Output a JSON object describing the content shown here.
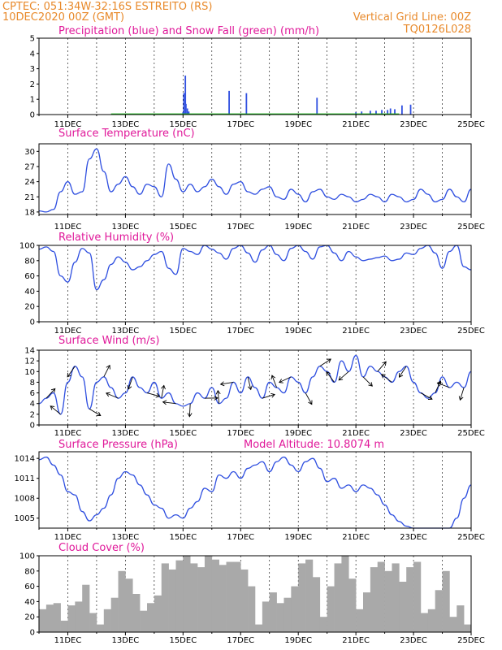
{
  "header": {
    "station": "CPTEC:   051:34W-32:16S   ESTREITO (RS)",
    "date": "10DEC2020 00Z (GMT)",
    "grid_note": "Vertical Grid Line: 00Z",
    "code": "TQ0126L028"
  },
  "colors": {
    "series": "#3050e0",
    "snow": "#20c020",
    "cloud": "#a9a9a9",
    "title": "#e0199a",
    "header": "#e8892a"
  },
  "x_axis": {
    "start": "2020-12-10T00Z",
    "end": "2020-12-25T00Z",
    "ticks": [
      "11DEC",
      "13DEC",
      "15DEC",
      "17DEC",
      "19DEC",
      "21DEC",
      "23DEC",
      "25DEC"
    ]
  },
  "chart_data": [
    {
      "type": "bar",
      "title": "Precipitation (blue) and Snow Fall (green) (mm/h)",
      "ylim": [
        0,
        5
      ],
      "yticks": [
        0,
        1,
        2,
        3,
        4,
        5
      ],
      "series": [
        {
          "name": "Precipitation",
          "points": [
            [
              4.3,
              0.05
            ],
            [
              4.9,
              0.05
            ],
            [
              5.0,
              0.15
            ],
            [
              5.03,
              1.4
            ],
            [
              5.08,
              2.55
            ],
            [
              5.1,
              0.7
            ],
            [
              5.15,
              0.4
            ],
            [
              5.2,
              0.2
            ],
            [
              6.6,
              1.55
            ],
            [
              7.2,
              1.4
            ],
            [
              9.65,
              1.1
            ],
            [
              11.0,
              0.15
            ],
            [
              11.2,
              0.2
            ],
            [
              11.5,
              0.25
            ],
            [
              11.7,
              0.25
            ],
            [
              11.9,
              0.3
            ],
            [
              12.1,
              0.3
            ],
            [
              12.2,
              0.4
            ],
            [
              12.35,
              0.35
            ],
            [
              12.6,
              0.6
            ],
            [
              12.9,
              0.65
            ]
          ]
        },
        {
          "name": "Snow Fall",
          "points": []
        }
      ]
    },
    {
      "type": "line",
      "title": "Surface Temperature (nC)",
      "ylim": [
        17.5,
        31.5
      ],
      "yticks": [
        18,
        21,
        24,
        27,
        30
      ],
      "x": [
        0,
        0.25,
        0.5,
        0.75,
        1,
        1.25,
        1.5,
        1.75,
        2,
        2.25,
        2.5,
        2.75,
        3,
        3.25,
        3.5,
        3.75,
        4,
        4.25,
        4.5,
        4.75,
        5,
        5.25,
        5.5,
        5.75,
        6,
        6.25,
        6.5,
        6.75,
        7,
        7.25,
        7.5,
        7.75,
        8,
        8.25,
        8.5,
        8.75,
        9,
        9.25,
        9.5,
        9.75,
        10,
        10.25,
        10.5,
        10.75,
        11,
        11.25,
        11.5,
        11.75,
        12,
        12.25,
        12.5,
        12.75,
        13,
        13.25,
        13.5,
        13.75,
        14,
        14.25,
        14.5,
        14.75,
        15
      ],
      "y": [
        18.2,
        18.0,
        18.5,
        22.0,
        24.0,
        21.5,
        22.0,
        28.5,
        30.5,
        26.0,
        22.0,
        23.5,
        25.0,
        23.0,
        21.5,
        23.5,
        23.0,
        21.0,
        27.5,
        24.5,
        22.0,
        23.5,
        22.0,
        23.0,
        24.5,
        23.0,
        21.5,
        23.5,
        24.0,
        22.0,
        21.5,
        22.5,
        23.0,
        21.0,
        20.5,
        22.5,
        21.5,
        20.0,
        22.0,
        22.5,
        21.0,
        20.5,
        21.5,
        21.0,
        20.0,
        20.5,
        21.5,
        21.0,
        20.0,
        21.5,
        21.0,
        20.0,
        20.5,
        22.5,
        21.5,
        20.0,
        20.5,
        22.5,
        21.0,
        20.0,
        22.5
      ]
    },
    {
      "type": "line",
      "title": "Relative Humidity (%)",
      "ylim": [
        0,
        100
      ],
      "yticks": [
        0,
        20,
        40,
        60,
        80,
        100
      ],
      "x": [
        0,
        0.25,
        0.5,
        0.75,
        1,
        1.25,
        1.5,
        1.75,
        2,
        2.25,
        2.5,
        2.75,
        3,
        3.25,
        3.5,
        3.75,
        4,
        4.25,
        4.5,
        4.75,
        5,
        5.25,
        5.5,
        5.75,
        6,
        6.25,
        6.5,
        6.75,
        7,
        7.25,
        7.5,
        7.75,
        8,
        8.25,
        8.5,
        8.75,
        9,
        9.25,
        9.5,
        9.75,
        10,
        10.25,
        10.5,
        10.75,
        11,
        11.25,
        11.5,
        11.75,
        12,
        12.25,
        12.5,
        12.75,
        13,
        13.25,
        13.5,
        13.75,
        14,
        14.25,
        14.5,
        14.75,
        15
      ],
      "y": [
        95,
        98,
        92,
        60,
        52,
        78,
        96,
        90,
        42,
        55,
        75,
        85,
        78,
        68,
        72,
        80,
        88,
        92,
        70,
        62,
        96,
        92,
        88,
        100,
        95,
        90,
        82,
        96,
        100,
        90,
        78,
        94,
        100,
        88,
        80,
        96,
        100,
        92,
        82,
        98,
        100,
        90,
        80,
        92,
        85,
        80,
        82,
        84,
        86,
        80,
        82,
        90,
        88,
        96,
        100,
        90,
        70,
        92,
        100,
        72,
        68
      ]
    },
    {
      "type": "line",
      "title": "Surface Wind (m/s)",
      "ylim": [
        0,
        14
      ],
      "yticks": [
        0,
        2,
        4,
        6,
        8,
        10,
        12,
        14
      ],
      "x": [
        0,
        0.25,
        0.5,
        0.75,
        1,
        1.25,
        1.5,
        1.75,
        2,
        2.25,
        2.5,
        2.75,
        3,
        3.25,
        3.5,
        3.75,
        4,
        4.25,
        4.5,
        4.75,
        5,
        5.25,
        5.5,
        5.75,
        6,
        6.25,
        6.5,
        6.75,
        7,
        7.25,
        7.5,
        7.75,
        8,
        8.25,
        8.5,
        8.75,
        9,
        9.25,
        9.5,
        9.75,
        10,
        10.25,
        10.5,
        10.75,
        11,
        11.25,
        11.5,
        11.75,
        12,
        12.25,
        12.5,
        12.75,
        13,
        13.25,
        13.5,
        13.75,
        14,
        14.25,
        14.5,
        14.75,
        15
      ],
      "y": [
        4,
        5,
        6,
        2,
        8,
        11,
        9,
        3,
        8,
        9,
        7,
        5,
        6,
        9,
        7,
        6,
        8,
        5,
        6,
        4,
        3.5,
        4,
        6,
        5,
        7,
        4,
        5,
        8,
        6,
        9,
        7,
        5,
        8,
        7,
        6,
        9,
        8,
        6,
        9,
        11,
        10,
        8,
        12,
        10,
        13,
        9,
        11,
        10,
        9,
        8,
        10,
        11,
        8,
        6,
        5,
        6,
        9,
        7,
        8,
        7,
        10
      ],
      "annotation_note": "Arrows indicate wind direction"
    },
    {
      "type": "line",
      "title": "Surface Pressure (hPa)",
      "subtitle": "Model Altitude: 10.8074 m",
      "ylim": [
        1003.5,
        1015
      ],
      "yticks": [
        1005,
        1008,
        1011,
        1014
      ],
      "x": [
        0,
        0.25,
        0.5,
        0.75,
        1,
        1.25,
        1.5,
        1.75,
        2,
        2.25,
        2.5,
        2.75,
        3,
        3.25,
        3.5,
        3.75,
        4,
        4.25,
        4.5,
        4.75,
        5,
        5.25,
        5.5,
        5.75,
        6,
        6.25,
        6.5,
        6.75,
        7,
        7.25,
        7.5,
        7.75,
        8,
        8.25,
        8.5,
        8.75,
        9,
        9.25,
        9.5,
        9.75,
        10,
        10.25,
        10.5,
        10.75,
        11,
        11.25,
        11.5,
        11.75,
        12,
        12.25,
        12.5,
        12.75,
        13,
        13.25,
        13.5,
        13.75,
        14,
        14.25,
        14.5,
        14.75,
        15
      ],
      "y": [
        1013.8,
        1014.2,
        1013.0,
        1011.5,
        1009.0,
        1008.5,
        1006.0,
        1004.6,
        1005.5,
        1006.5,
        1008.5,
        1011.0,
        1012.0,
        1011.5,
        1010.0,
        1008.5,
        1007.0,
        1006.5,
        1005.0,
        1005.5,
        1005.0,
        1006.5,
        1007.5,
        1009.5,
        1009.0,
        1011.5,
        1011.0,
        1012.0,
        1011.0,
        1012.5,
        1013.0,
        1013.5,
        1012.0,
        1013.5,
        1014.2,
        1013.0,
        1012.0,
        1013.5,
        1014.0,
        1012.5,
        1010.5,
        1011.0,
        1009.5,
        1010.0,
        1009.0,
        1010.0,
        1009.5,
        1008.5,
        1007.0,
        1005.5,
        1004.5,
        1003.8,
        1003.5,
        1003.3,
        1003.4,
        1003.5,
        1003.3,
        1003.5,
        1005.0,
        1008.0,
        1010.0
      ]
    },
    {
      "type": "bar",
      "title": "Cloud Cover (%)",
      "ylim": [
        0,
        100
      ],
      "yticks": [
        0,
        20,
        40,
        60,
        80,
        100
      ],
      "x": [
        0,
        0.25,
        0.5,
        0.75,
        1,
        1.25,
        1.5,
        1.75,
        2,
        2.25,
        2.5,
        2.75,
        3,
        3.25,
        3.5,
        3.75,
        4,
        4.25,
        4.5,
        4.75,
        5,
        5.25,
        5.5,
        5.75,
        6,
        6.25,
        6.5,
        6.75,
        7,
        7.25,
        7.5,
        7.75,
        8,
        8.25,
        8.5,
        8.75,
        9,
        9.25,
        9.5,
        9.75,
        10,
        10.25,
        10.5,
        10.75,
        11,
        11.25,
        11.5,
        11.75,
        12,
        12.25,
        12.5,
        12.75,
        13,
        13.25,
        13.5,
        13.75,
        14,
        14.25,
        14.5,
        14.75
      ],
      "y": [
        30,
        36,
        38,
        15,
        35,
        40,
        62,
        25,
        10,
        30,
        45,
        80,
        70,
        50,
        28,
        38,
        48,
        90,
        82,
        94,
        100,
        90,
        85,
        100,
        95,
        88,
        92,
        92,
        82,
        60,
        10,
        40,
        52,
        38,
        45,
        60,
        90,
        95,
        72,
        20,
        60,
        90,
        100,
        70,
        30,
        52,
        85,
        92,
        80,
        90,
        66,
        85,
        92,
        25,
        30,
        55,
        80,
        20,
        35,
        10
      ]
    }
  ]
}
